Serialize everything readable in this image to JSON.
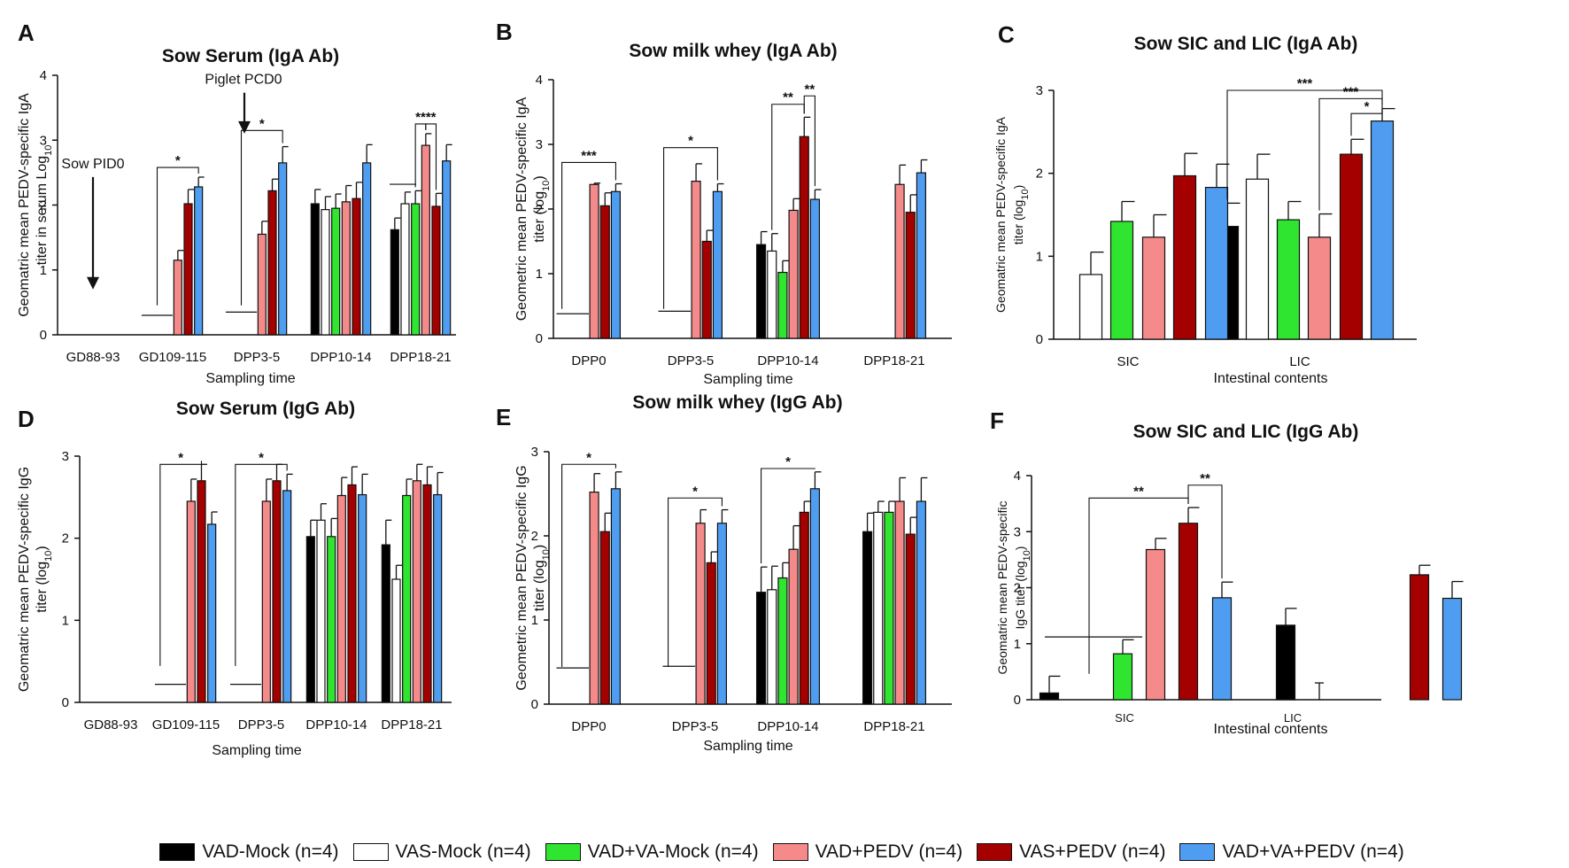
{
  "colors": {
    "axis": "#111111",
    "VAD-Mock": "#000000",
    "VAS-Mock": "#ffffff",
    "VAD+VA-Mock": "#2fe52f",
    "VAD+PEDV": "#f58a8a",
    "VAS+PEDV": "#a50000",
    "VAD+VA+PEDV": "#4f9df0"
  },
  "legend": {
    "items": [
      {
        "label": "VAD-Mock (n=4)",
        "group": "VAD-Mock"
      },
      {
        "label": "VAS-Mock (n=4)",
        "group": "VAS-Mock"
      },
      {
        "label": "VAD+VA-Mock (n=4)",
        "group": "VAD+VA-Mock"
      },
      {
        "label": "VAD+PEDV (n=4)",
        "group": "VAD+PEDV"
      },
      {
        "label": "VAS+PEDV (n=4)",
        "group": "VAS+PEDV"
      },
      {
        "label": "VAD+VA+PEDV (n=4)",
        "group": "VAD+VA+PEDV"
      }
    ]
  },
  "chart_data": [
    {
      "panel": "A",
      "type": "bar",
      "title": "Sow Serum (IgA Ab)",
      "ylabel": "Geomatric mean PEDV-specific IgA titer in serum Log10",
      "xlabel": "Sampling time",
      "ylim": [
        0,
        4
      ],
      "yticks": [
        0,
        1,
        2,
        3,
        4
      ],
      "categories": [
        "GD88-93",
        "GD109-115",
        "DPP3-5",
        "DPP10-14",
        "DPP18-21"
      ],
      "series": [
        {
          "name": "VAD-Mock",
          "values": [
            null,
            null,
            null,
            2.02,
            1.62
          ],
          "errors": [
            0,
            0,
            0,
            0.22,
            0.18
          ]
        },
        {
          "name": "VAS-Mock",
          "values": [
            null,
            null,
            null,
            1.93,
            2.02
          ],
          "errors": [
            0,
            0,
            0,
            0.2,
            0.18
          ]
        },
        {
          "name": "VAD+VA-Mock",
          "values": [
            null,
            null,
            null,
            1.95,
            2.02
          ],
          "errors": [
            0,
            0,
            0,
            0.22,
            0.2
          ]
        },
        {
          "name": "VAD+PEDV",
          "values": [
            null,
            1.15,
            1.55,
            2.05,
            2.92
          ],
          "errors": [
            0,
            0.15,
            0.2,
            0.25,
            0.18
          ]
        },
        {
          "name": "VAS+PEDV",
          "values": [
            null,
            2.02,
            2.22,
            2.1,
            1.98
          ],
          "errors": [
            0,
            0.22,
            0.18,
            0.25,
            0.2
          ]
        },
        {
          "name": "VAD+VA+PEDV",
          "values": [
            null,
            2.28,
            2.65,
            2.65,
            2.68
          ],
          "errors": [
            0,
            0.15,
            0.25,
            0.28,
            0.25
          ]
        }
      ],
      "baselines": [
        {
          "category": 1,
          "value": 0.3
        },
        {
          "category": 2,
          "value": 0.35
        },
        {
          "category": 4,
          "value": 2.32
        }
      ],
      "annotations": [
        {
          "text": "Sow PID0",
          "category": 0,
          "value": 2.35
        },
        {
          "text": "Piglet PCD0",
          "category": 2,
          "value": 3.65
        }
      ],
      "significance": [
        {
          "label": "*",
          "category": 1,
          "from": "VAS-Mock",
          "to": "VAD+VA+PEDV",
          "level": 2.58
        },
        {
          "label": "*",
          "category": 2,
          "from": "VAS-Mock",
          "to": "VAD+VA+PEDV",
          "level": 3.15
        },
        {
          "label": "**",
          "category": 4,
          "from": "VAD+VA-Mock",
          "to": "VAD+PEDV",
          "level": 3.25
        },
        {
          "label": "**",
          "category": 4,
          "from": "VAD+PEDV",
          "to": "VAS+PEDV",
          "level": 3.25
        }
      ]
    },
    {
      "panel": "B",
      "type": "bar",
      "title": "Sow milk whey (IgA Ab)",
      "ylabel": "Geometric mean PEDV-specific IgA titer (log10)",
      "xlabel": "Sampling time",
      "ylim": [
        0,
        4
      ],
      "yticks": [
        0,
        1,
        2,
        3,
        4
      ],
      "categories": [
        "DPP0",
        "DPP3-5",
        "DPP10-14",
        "DPP18-21"
      ],
      "series": [
        {
          "name": "VAD-Mock",
          "values": [
            null,
            null,
            1.45,
            null
          ],
          "errors": [
            0,
            0,
            0.2,
            0
          ]
        },
        {
          "name": "VAS-Mock",
          "values": [
            null,
            null,
            1.35,
            null
          ],
          "errors": [
            0,
            0,
            0.27,
            0
          ]
        },
        {
          "name": "VAD+VA-Mock",
          "values": [
            null,
            null,
            1.02,
            null
          ],
          "errors": [
            0,
            0,
            0.18,
            0
          ]
        },
        {
          "name": "VAD+PEDV",
          "values": [
            2.38,
            2.43,
            1.98,
            2.38
          ],
          "errors": [
            0.02,
            0.27,
            0.18,
            0.3
          ]
        },
        {
          "name": "VAS+PEDV",
          "values": [
            2.05,
            1.5,
            3.12,
            1.95
          ],
          "errors": [
            0.2,
            0.17,
            0.3,
            0.27
          ]
        },
        {
          "name": "VAD+VA+PEDV",
          "values": [
            2.27,
            2.27,
            2.15,
            2.56
          ],
          "errors": [
            0.12,
            0.12,
            0.15,
            0.2
          ]
        }
      ],
      "baselines": [
        {
          "category": 0,
          "value": 0.38
        },
        {
          "category": 1,
          "value": 0.42
        }
      ],
      "significance": [
        {
          "label": "***",
          "category": 0,
          "from": "VAD-Mock",
          "to": "VAD+VA+PEDV",
          "level": 2.72
        },
        {
          "label": "*",
          "category": 1,
          "from": "VAD-Mock",
          "to": "VAD+VA+PEDV",
          "level": 2.95
        },
        {
          "label": "**",
          "category": 2,
          "from": "VAS-Mock",
          "to": "VAS+PEDV",
          "level": 3.62
        },
        {
          "label": "**",
          "category": 2,
          "from": "VAS+PEDV",
          "to": "VAD+VA+PEDV",
          "level": 3.75
        }
      ]
    },
    {
      "panel": "C",
      "type": "bar",
      "title": "Sow SIC and LIC (IgA Ab)",
      "ylabel": "Geomatric mean PEDV-specific IgA titer (log10)",
      "xlabel": "Intestinal contents",
      "ylim": [
        0,
        3
      ],
      "yticks": [
        0,
        1,
        2,
        3
      ],
      "categories": [
        "SIC",
        "LIC"
      ],
      "series": [
        {
          "name": "VAD-Mock",
          "values": [
            null,
            1.36
          ],
          "errors": [
            0,
            0.28
          ]
        },
        {
          "name": "VAS-Mock",
          "values": [
            0.78,
            1.93
          ],
          "errors": [
            0.27,
            0.3
          ]
        },
        {
          "name": "VAD+VA-Mock",
          "values": [
            1.42,
            1.44
          ],
          "errors": [
            0.24,
            0.22
          ]
        },
        {
          "name": "VAD+PEDV",
          "values": [
            1.23,
            1.23
          ],
          "errors": [
            0.27,
            0.28
          ]
        },
        {
          "name": "VAS+PEDV",
          "values": [
            1.97,
            2.23
          ],
          "errors": [
            0.27,
            0.18
          ]
        },
        {
          "name": "VAD+VA+PEDV",
          "values": [
            1.83,
            2.63
          ],
          "errors": [
            0.28,
            0.15
          ]
        }
      ],
      "significance": [
        {
          "label": "***",
          "category": 1,
          "from": "VAD-Mock",
          "to": "VAD+VA+PEDV",
          "level": 3.0
        },
        {
          "label": "***",
          "category": 1,
          "from": "VAD+PEDV",
          "to": "VAD+VA+PEDV",
          "level": 2.9
        },
        {
          "label": "*",
          "category": 1,
          "from": "VAS+PEDV",
          "to": "VAD+VA+PEDV",
          "level": 2.72
        }
      ]
    },
    {
      "panel": "D",
      "type": "bar",
      "title": "Sow Serum (IgG Ab)",
      "ylabel": "Geomatric mean PEDV-specific IgG titer (log10)",
      "xlabel": "Sampling time",
      "ylim": [
        0,
        3
      ],
      "yticks": [
        0,
        1,
        2,
        3
      ],
      "categories": [
        "GD88-93",
        "GD109-115",
        "DPP3-5",
        "DPP10-14",
        "DPP18-21"
      ],
      "series": [
        {
          "name": "VAD-Mock",
          "values": [
            null,
            null,
            null,
            2.02,
            1.92
          ],
          "errors": [
            0,
            0,
            0,
            0.2,
            0.3
          ]
        },
        {
          "name": "VAS-Mock",
          "values": [
            null,
            null,
            null,
            2.22,
            1.5
          ],
          "errors": [
            0,
            0,
            0,
            0.2,
            0.17
          ]
        },
        {
          "name": "VAD+VA-Mock",
          "values": [
            null,
            null,
            null,
            2.02,
            2.52
          ],
          "errors": [
            0,
            0,
            0,
            0.22,
            0.2
          ]
        },
        {
          "name": "VAD+PEDV",
          "values": [
            null,
            2.45,
            2.45,
            2.52,
            2.7
          ],
          "errors": [
            0,
            0.27,
            0.27,
            0.22,
            0.2
          ]
        },
        {
          "name": "VAS+PEDV",
          "values": [
            null,
            2.7,
            2.7,
            2.65,
            2.65
          ],
          "errors": [
            0,
            0.2,
            0.2,
            0.22,
            0.22
          ]
        },
        {
          "name": "VAD+VA+PEDV",
          "values": [
            null,
            2.17,
            2.58,
            2.53,
            2.53
          ],
          "errors": [
            0,
            0.15,
            0.2,
            0.25,
            0.27
          ]
        }
      ],
      "baselines": [
        {
          "category": 1,
          "value": 0.22
        },
        {
          "category": 2,
          "value": 0.22
        }
      ],
      "significance": [
        {
          "label": "*",
          "category": 1,
          "from": "VAD-Mock",
          "to": "VAS+PEDV",
          "level": 2.9
        },
        {
          "label": "*",
          "category": 2,
          "from": "VAD-Mock",
          "to": "VAD+VA+PEDV",
          "level": 2.9
        }
      ]
    },
    {
      "panel": "E",
      "type": "bar",
      "title": "Sow milk whey (IgG Ab)",
      "ylabel": "Geometric mean PEDV-specific IgG titer (log10)",
      "xlabel": "Sampling time",
      "ylim": [
        0,
        3
      ],
      "yticks": [
        0,
        1,
        2,
        3
      ],
      "categories": [
        "DPP0",
        "DPP3-5",
        "DPP10-14",
        "DPP18-21"
      ],
      "series": [
        {
          "name": "VAD-Mock",
          "values": [
            null,
            null,
            1.33,
            2.05
          ],
          "errors": [
            0,
            0,
            0.3,
            0.22
          ]
        },
        {
          "name": "VAS-Mock",
          "values": [
            null,
            null,
            1.36,
            2.28
          ],
          "errors": [
            0,
            0,
            0.28,
            0.13
          ]
        },
        {
          "name": "VAD+VA-Mock",
          "values": [
            null,
            null,
            1.5,
            2.28
          ],
          "errors": [
            0,
            0,
            0.18,
            0.13
          ]
        },
        {
          "name": "VAD+PEDV",
          "values": [
            2.52,
            2.15,
            1.84,
            2.41
          ],
          "errors": [
            0.22,
            0.16,
            0.28,
            0.28
          ]
        },
        {
          "name": "VAS+PEDV",
          "values": [
            2.05,
            1.68,
            2.28,
            2.02
          ],
          "errors": [
            0.22,
            0.13,
            0.13,
            0.2
          ]
        },
        {
          "name": "VAD+VA+PEDV",
          "values": [
            2.56,
            2.15,
            2.56,
            2.41
          ],
          "errors": [
            0.2,
            0.16,
            0.2,
            0.28
          ]
        }
      ],
      "baselines": [
        {
          "category": 0,
          "value": 0.43
        },
        {
          "category": 1,
          "value": 0.45
        }
      ],
      "significance": [
        {
          "label": "*",
          "category": 0,
          "from": "VAD-Mock",
          "to": "VAD+VA+PEDV",
          "level": 2.85
        },
        {
          "label": "*",
          "category": 1,
          "from": "VAD-Mock",
          "to": "VAD+VA+PEDV",
          "level": 2.45
        },
        {
          "label": "*",
          "category": 2,
          "from": "VAD-Mock",
          "to": "VAD+VA+PEDV",
          "level": 2.8
        }
      ]
    },
    {
      "panel": "F",
      "type": "bar",
      "title": "Sow SIC and LIC (IgG Ab)",
      "ylabel": "Geomatric mean PEDV-specific IgG titer (log10)",
      "xlabel": "Intestinal contents",
      "ylim": [
        0,
        4
      ],
      "yticks": [
        0,
        1,
        2,
        3,
        4
      ],
      "categories": [
        "SIC",
        "LIC"
      ],
      "series": [
        {
          "name": "VAD-Mock",
          "values": [
            0.12,
            1.33
          ],
          "errors": [
            0.3,
            0.3
          ]
        },
        {
          "name": "VAS-Mock",
          "values": [
            null,
            null
          ],
          "errors": [
            0,
            0.3
          ]
        },
        {
          "name": "VAD+VA-Mock",
          "values": [
            0.82,
            null
          ],
          "errors": [
            0.25,
            0
          ]
        },
        {
          "name": "VAD+PEDV",
          "values": [
            2.68,
            null
          ],
          "errors": [
            0.2,
            0
          ]
        },
        {
          "name": "VAS+PEDV",
          "values": [
            3.15,
            2.23
          ],
          "errors": [
            0.28,
            0.17
          ]
        },
        {
          "name": "VAD+VA+PEDV",
          "values": [
            1.82,
            1.81
          ],
          "errors": [
            0.28,
            0.3
          ]
        }
      ],
      "baselines": [
        {
          "category": 0,
          "value": 1.12
        }
      ],
      "significance": [
        {
          "label": "**",
          "category": 0,
          "from": "VAS-Mock",
          "to": "VAS+PEDV",
          "level": 3.6
        },
        {
          "label": "**",
          "category": 0,
          "from": "VAS+PEDV",
          "to": "VAD+VA+PEDV",
          "level": 3.83
        }
      ]
    }
  ]
}
